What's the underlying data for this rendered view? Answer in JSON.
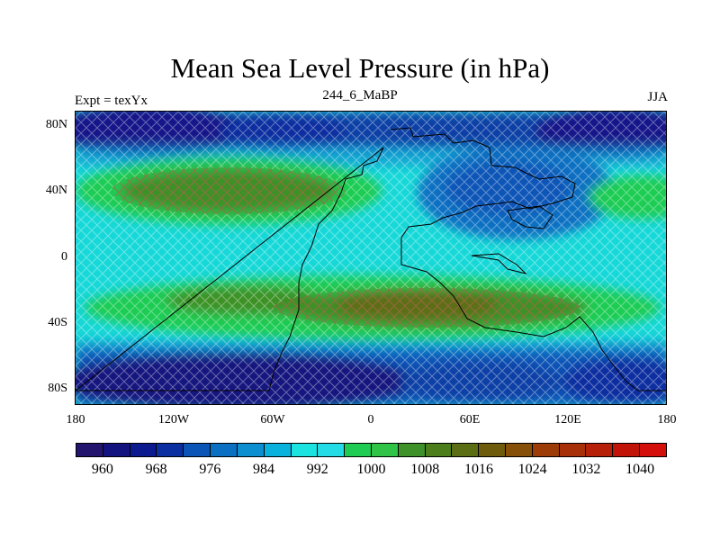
{
  "title": "Mean Sea Level Pressure (in hPa)",
  "left_label": "Expt = texYx",
  "center_label": "244_6_MaBP",
  "right_label": "JJA",
  "y_ticks": [
    "80N",
    "40N",
    "0",
    "40S",
    "80S"
  ],
  "x_ticks": [
    "180",
    "120W",
    "60W",
    "0",
    "60E",
    "120E",
    "180"
  ],
  "colorbar": {
    "colors": [
      "#23156e",
      "#13137f",
      "#0b1a8e",
      "#0b2fa0",
      "#0b55b7",
      "#0b70c2",
      "#0c8fd0",
      "#08b2dc",
      "#1be3e0",
      "#23dce6",
      "#1fcc53",
      "#2fc348",
      "#3d9128",
      "#4c7e1c",
      "#5b6e14",
      "#6e5b0c",
      "#875009",
      "#9e3c07",
      "#a83009",
      "#b62009",
      "#c11307",
      "#d40e0b"
    ],
    "labels": [
      "960",
      "968",
      "976",
      "984",
      "992",
      "1000",
      "1008",
      "1016",
      "1024",
      "1032",
      "1040"
    ]
  }
}
